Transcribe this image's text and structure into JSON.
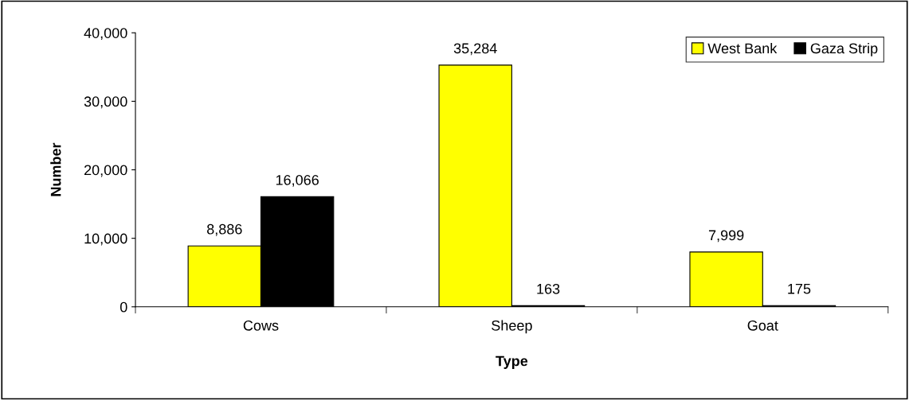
{
  "chart_data": {
    "type": "bar",
    "xlabel": "Type",
    "ylabel": "Number",
    "categories": [
      "Cows",
      "Sheep",
      "Goat"
    ],
    "series": [
      {
        "name": "West Bank",
        "color": "#ffff00",
        "values": [
          8886,
          35284,
          7999
        ],
        "value_labels": [
          "8,886",
          "35,284",
          "7,999"
        ]
      },
      {
        "name": "Gaza Strip",
        "color": "#000000",
        "values": [
          16066,
          163,
          175
        ],
        "value_labels": [
          "16,066",
          "163",
          "175"
        ]
      }
    ],
    "ylim": [
      0,
      40000
    ],
    "yticks": [
      0,
      {
        "value": 10000,
        "label": "10,000"
      },
      {
        "value": 20000,
        "label": "20,000"
      },
      {
        "value": 30000,
        "label": "30,000"
      },
      {
        "value": 40000,
        "label": "40,000"
      }
    ],
    "grid": false,
    "legend": "top right"
  }
}
